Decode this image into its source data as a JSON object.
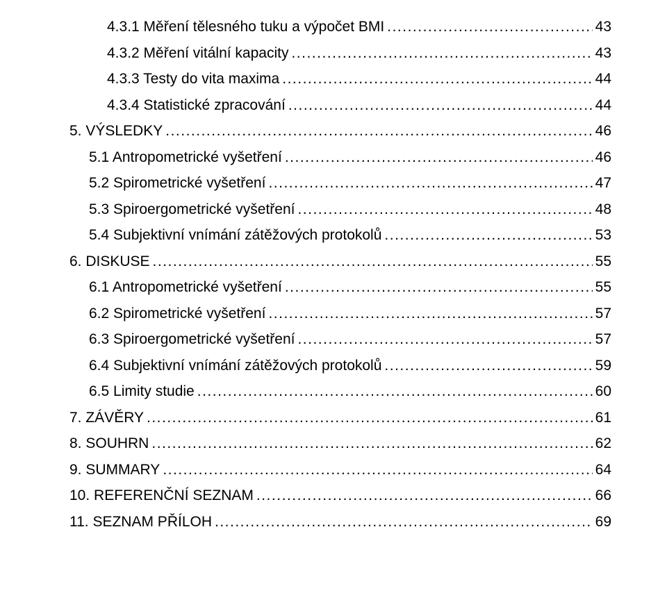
{
  "font_family": "Arial",
  "font_size_pt": 16,
  "text_color": "#000000",
  "background_color": "#ffffff",
  "leader_char": ".",
  "entries": [
    {
      "indent": 2,
      "label": "4.3.1 Měření tělesného tuku a výpočet BMI",
      "page": "43"
    },
    {
      "indent": 2,
      "label": "4.3.2 Měření vitální kapacity",
      "page": "43"
    },
    {
      "indent": 2,
      "label": "4.3.3 Testy do vita maxima",
      "page": "44"
    },
    {
      "indent": 2,
      "label": "4.3.4 Statistické zpracování",
      "page": "44"
    },
    {
      "indent": 0,
      "label": "5. VÝSLEDKY",
      "page": "46"
    },
    {
      "indent": 1,
      "label": "5.1 Antropometrické vyšetření",
      "page": "46"
    },
    {
      "indent": 1,
      "label": "5.2 Spirometrické vyšetření",
      "page": "47"
    },
    {
      "indent": 1,
      "label": "5.3 Spiroergometrické vyšetření",
      "page": "48"
    },
    {
      "indent": 1,
      "label": "5.4 Subjektivní vnímání zátěžových protokolů",
      "page": "53"
    },
    {
      "indent": 0,
      "label": "6. DISKUSE",
      "page": "55"
    },
    {
      "indent": 1,
      "label": "6.1 Antropometrické vyšetření",
      "page": "55"
    },
    {
      "indent": 1,
      "label": "6.2 Spirometrické vyšetření",
      "page": "57"
    },
    {
      "indent": 1,
      "label": "6.3 Spiroergometrické vyšetření",
      "page": "57"
    },
    {
      "indent": 1,
      "label": "6.4 Subjektivní vnímání zátěžových protokolů",
      "page": "59"
    },
    {
      "indent": 1,
      "label": "6.5 Limity studie",
      "page": "60"
    },
    {
      "indent": 0,
      "label": "7. ZÁVĚRY",
      "page": "61"
    },
    {
      "indent": 0,
      "label": "8. SOUHRN",
      "page": "62"
    },
    {
      "indent": 0,
      "label": "9. SUMMARY",
      "page": "64"
    },
    {
      "indent": 0,
      "label": "10. REFERENČNÍ SEZNAM",
      "page": "66"
    },
    {
      "indent": 0,
      "label": "11. SEZNAM PŘÍLOH",
      "page": "69"
    }
  ]
}
